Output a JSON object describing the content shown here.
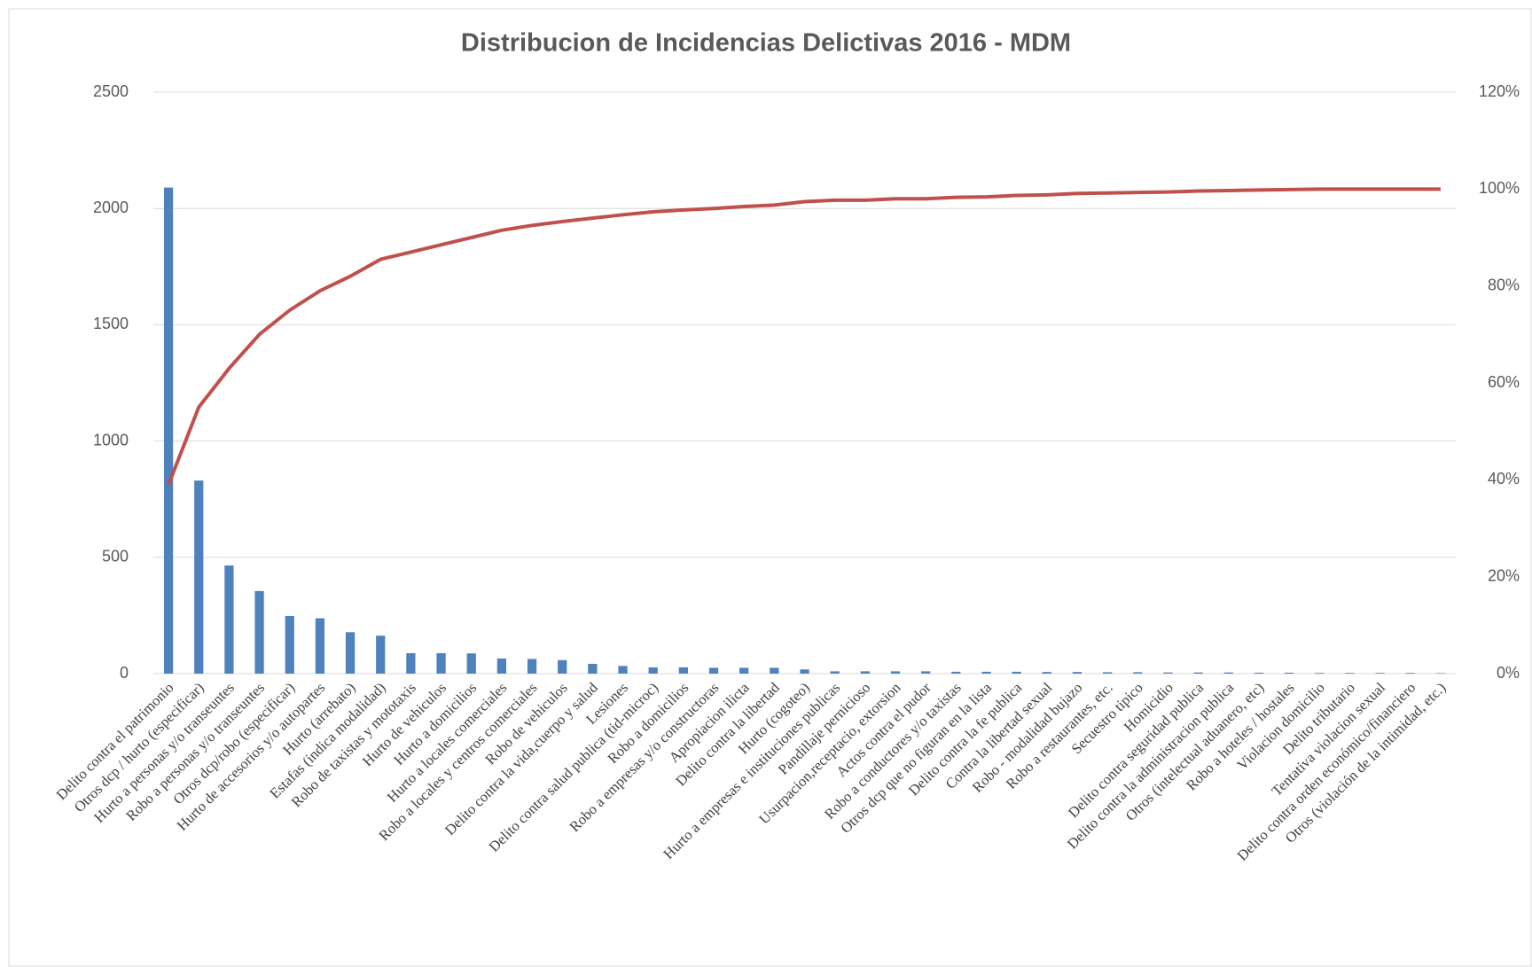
{
  "chart_data": {
    "type": "pareto",
    "title": "Distribucion de Incidencias Delictivas 2016 - MDM",
    "categories": [
      "Delito contra el patrimonio",
      "Otros dcp / hurto (especificar)",
      "Hurto a personas y/o transeuntes",
      "Robo a personas y/o transeuntes",
      "Otros dcp/robo (especificar)",
      "Hurto de accesorios y/o autopartes",
      "Hurto (arrebato)",
      "Estafas (indica modalidad)",
      "Robo de taxistas y mototaxis",
      "Hurto de vehiculos",
      "Hurto a domicilios",
      "Hurto a locales comerciales",
      "Robo a locales y centros comerciales",
      "Robo de vehiculos",
      "Delito contra la vida,cuerpo y salud",
      "Lesiones",
      "Delito contra salud publica (tid-microc)",
      "Robo a domicilios",
      "Robo a empresas y/o constructoras",
      "Apropiacion ilicta",
      "Delito contra la libertad",
      "Hurto (cogoteo)",
      "Hurto a empresas e instituciones publicas",
      "Pandillaje pernicioso",
      "Usurpacion,receptacio, extorsion",
      "Actos contra el pudor",
      "Robo a conductores y/o taxistas",
      "Otros dcp que no figuran en la lista",
      "Delito contra la fe publica",
      "Contra la libertad sexual",
      "Robo - modalidad bujazo",
      "Robo a restaurantes, etc.",
      "Secuestro tipico",
      "Homicidio",
      "Delito contra seguridad publica",
      "Delito contra la administracion publica",
      "Otros (intelectual aduanero, etc)",
      "Robo a hoteles / hostales",
      "Violacion domicilio",
      "Delito tributario",
      "Tentativa violacion sexual",
      "Delito contra orden económico/financiero",
      "Otros (violación de la intimidad, etc.)"
    ],
    "series": [
      {
        "color": "#4f81bd",
        "values": [
          2090,
          830,
          465,
          355,
          248,
          238,
          178,
          163,
          88,
          88,
          87,
          65,
          63,
          58,
          42,
          33,
          27,
          27,
          25,
          25,
          25,
          18,
          10,
          10,
          10,
          10,
          8,
          8,
          8,
          7,
          7,
          6,
          6,
          5,
          5,
          5,
          4,
          4,
          3,
          3,
          3,
          3,
          2
        ]
      },
      {
        "color": "#c0504d",
        "axis": "y2",
        "values": [
          39,
          55,
          63,
          70,
          75,
          79,
          82,
          85.5,
          87,
          88.5,
          90,
          91.5,
          92.5,
          93.3,
          94,
          94.7,
          95.3,
          95.7,
          96,
          96.4,
          96.7,
          97.4,
          97.7,
          97.7,
          98,
          98,
          98.3,
          98.4,
          98.7,
          98.8,
          99.1,
          99.2,
          99.3,
          99.4,
          99.6,
          99.7,
          99.8,
          99.9,
          100,
          100,
          100,
          100,
          100
        ]
      }
    ],
    "ylim": [
      0,
      2500
    ],
    "yticks": [
      0,
      500,
      1000,
      1500,
      2000,
      2500
    ],
    "y2lim": [
      0,
      120
    ],
    "y2ticks": [
      {
        "value": 0,
        "label": "0%"
      },
      {
        "value": 20,
        "label": "20%"
      },
      {
        "value": 40,
        "label": "40%"
      },
      {
        "value": 60,
        "label": "60%"
      },
      {
        "value": 80,
        "label": "80%"
      },
      {
        "value": 100,
        "label": "100%"
      },
      {
        "value": 120,
        "label": "120%"
      }
    ],
    "grid": true
  }
}
